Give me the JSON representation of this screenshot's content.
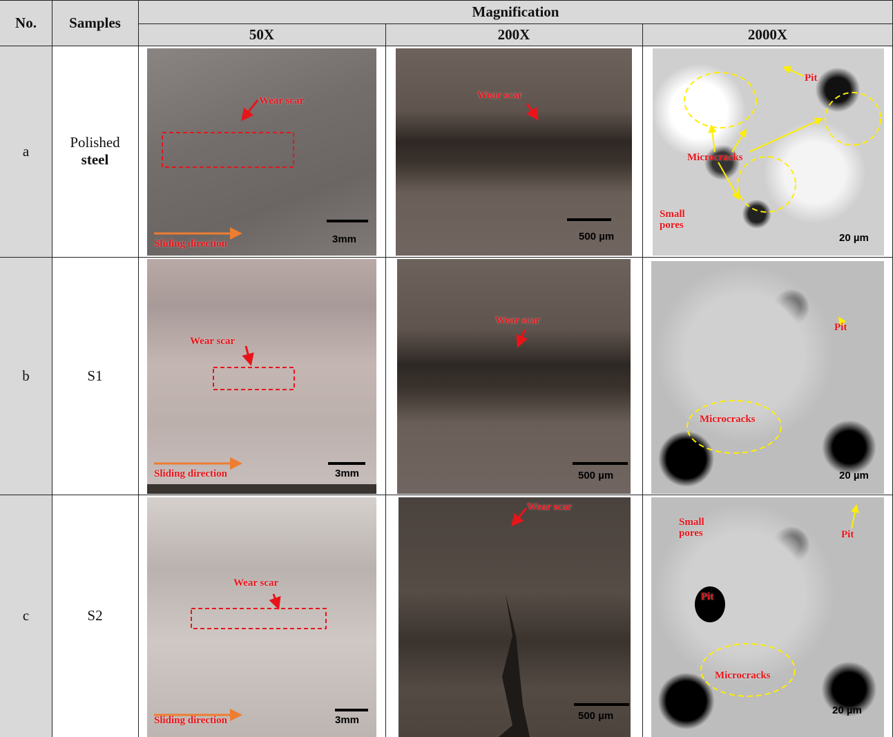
{
  "table": {
    "header": {
      "no": "No.",
      "samples": "Samples",
      "group": "Magnification",
      "columns": [
        "50X",
        "200X",
        "2000X"
      ]
    },
    "rows": [
      {
        "no": "a",
        "sample": [
          "Polished",
          "steel"
        ],
        "images": [
          {
            "annotations": [
              "Wear scar",
              "Sliding direction"
            ],
            "scale": "3mm"
          },
          {
            "annotations": [
              "Wear scar"
            ],
            "scale": "500 µm"
          },
          {
            "annotations": [
              "Pit",
              "Microcracks",
              "Small pores"
            ],
            "scale": "20 µm"
          }
        ]
      },
      {
        "no": "b",
        "sample": [
          "S1"
        ],
        "images": [
          {
            "annotations": [
              "Wear scar",
              "Sliding direction"
            ],
            "scale": "3mm"
          },
          {
            "annotations": [
              "Wear scar"
            ],
            "scale": "500 µm"
          },
          {
            "annotations": [
              "Pit",
              "Microcracks"
            ],
            "scale": "20 µm"
          }
        ]
      },
      {
        "no": "c",
        "sample": [
          "S2"
        ],
        "images": [
          {
            "annotations": [
              "Wear scar",
              "Sliding direction"
            ],
            "scale": "3mm"
          },
          {
            "annotations": [
              "Wear scar"
            ],
            "scale": "500 µm"
          },
          {
            "annotations": [
              "Small pores",
              "Pit",
              "Pit",
              "Microcracks"
            ],
            "scale": "20 µm"
          }
        ]
      }
    ]
  }
}
